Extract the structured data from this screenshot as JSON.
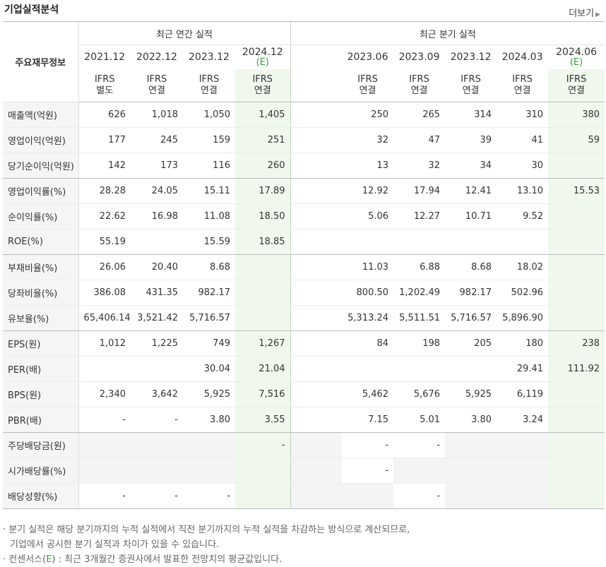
{
  "title": "기업실적분석",
  "more_label": "더보기",
  "header": {
    "row_label": "주요재무정보",
    "annual_group": "최근 연간 실적",
    "quarter_group": "최근 분기 실적",
    "annual_periods": [
      "2021.12",
      "2022.12",
      "2023.12",
      "2024.12"
    ],
    "annual_est_mark": "(E)",
    "quarter_periods": [
      "2023.06",
      "2023.09",
      "2023.12",
      "2024.03",
      "2024.06"
    ],
    "quarter_est_mark": "(E)",
    "annual_types": [
      [
        "IFRS",
        "별도"
      ],
      [
        "IFRS",
        "연결"
      ],
      [
        "IFRS",
        "연결"
      ],
      [
        "IFRS",
        "연결"
      ]
    ],
    "quarter_types": [
      [
        "IFRS",
        "연결"
      ],
      [
        "IFRS",
        "연결"
      ],
      [
        "IFRS",
        "연결"
      ],
      [
        "IFRS",
        "연결"
      ],
      [
        "IFRS",
        "연결"
      ]
    ]
  },
  "rows": [
    {
      "label": "매출액(억원)",
      "annual": [
        "626",
        "1,018",
        "1,050",
        "1,405"
      ],
      "quarter": [
        "250",
        "265",
        "314",
        "310",
        "380"
      ]
    },
    {
      "label": "영업이익(억원)",
      "annual": [
        "177",
        "245",
        "159",
        "251"
      ],
      "quarter": [
        "32",
        "47",
        "39",
        "41",
        "59"
      ]
    },
    {
      "label": "당기순이익(억원)",
      "annual": [
        "142",
        "173",
        "116",
        "260"
      ],
      "quarter": [
        "13",
        "32",
        "34",
        "30",
        ""
      ]
    },
    {
      "label": "영업이익률(%)",
      "annual": [
        "28.28",
        "24.05",
        "15.11",
        "17.89"
      ],
      "quarter": [
        "12.92",
        "17.94",
        "12.41",
        "13.10",
        "15.53"
      ]
    },
    {
      "label": "순이익률(%)",
      "annual": [
        "22.62",
        "16.98",
        "11.08",
        "18.50"
      ],
      "quarter": [
        "5.06",
        "12.27",
        "10.71",
        "9.52",
        ""
      ]
    },
    {
      "label": "ROE(%)",
      "annual": [
        "55.19",
        "",
        "15.59",
        "18.85"
      ],
      "quarter": [
        "",
        "",
        "",
        "",
        ""
      ]
    },
    {
      "label": "부채비율(%)",
      "annual": [
        "26.06",
        "20.40",
        "8.68",
        ""
      ],
      "quarter": [
        "11.03",
        "6.88",
        "8.68",
        "18.02",
        ""
      ]
    },
    {
      "label": "당좌비율(%)",
      "annual": [
        "386.08",
        "431.35",
        "982.17",
        ""
      ],
      "quarter": [
        "800.50",
        "1,202.49",
        "982.17",
        "502.96",
        ""
      ]
    },
    {
      "label": "유보율(%)",
      "annual": [
        "65,406.14",
        "3,521.42",
        "5,716.57",
        ""
      ],
      "quarter": [
        "5,313.24",
        "5,511.51",
        "5,716.57",
        "5,896.90",
        ""
      ]
    },
    {
      "label": "EPS(원)",
      "annual": [
        "1,012",
        "1,225",
        "749",
        "1,267"
      ],
      "quarter": [
        "84",
        "198",
        "205",
        "180",
        "238"
      ]
    },
    {
      "label": "PER(배)",
      "annual": [
        "",
        "",
        "30.04",
        "21.04"
      ],
      "quarter": [
        "",
        "",
        "",
        "29.41",
        "111.92"
      ]
    },
    {
      "label": "BPS(원)",
      "annual": [
        "2,340",
        "3,642",
        "5,925",
        "7,516"
      ],
      "quarter": [
        "5,462",
        "5,676",
        "5,925",
        "6,119",
        ""
      ]
    },
    {
      "label": "PBR(배)",
      "annual": [
        "-",
        "-",
        "3.80",
        "3.55"
      ],
      "quarter": [
        "7.15",
        "5.01",
        "3.80",
        "3.24",
        ""
      ]
    },
    {
      "label": "주당배당금(원)",
      "annual": [
        "",
        "",
        "",
        "-"
      ],
      "quarter": [
        "-",
        "-",
        "",
        "",
        ""
      ]
    },
    {
      "label": "시가배당률(%)",
      "annual": [
        "",
        "",
        "",
        ""
      ],
      "quarter": [
        "-",
        "",
        "",
        "",
        ""
      ]
    },
    {
      "label": "배당성향(%)",
      "annual": [
        "-",
        "-",
        "-",
        ""
      ],
      "quarter": [
        "",
        "-",
        "",
        "",
        ""
      ]
    }
  ],
  "notes": {
    "line1": "분기 실적은 해당 분기까지의 누적 실적에서 직전 분기까지의 누적 실적을 차감하는 방식으로 계산되므로,",
    "line2": "기업에서 공시한 분기 실적과 차이가 있을 수 있습니다.",
    "line3_prefix": "컨센서스(",
    "line3_mark": "E",
    "line3_suffix": ") : 최근 3개월간 증권사에서 발표한 전망치의 평균값입니다."
  },
  "colors": {
    "ifrs": "#e76b1e",
    "estimate": "#3a9a3a",
    "estimate_bg": "#f0f8ee"
  }
}
